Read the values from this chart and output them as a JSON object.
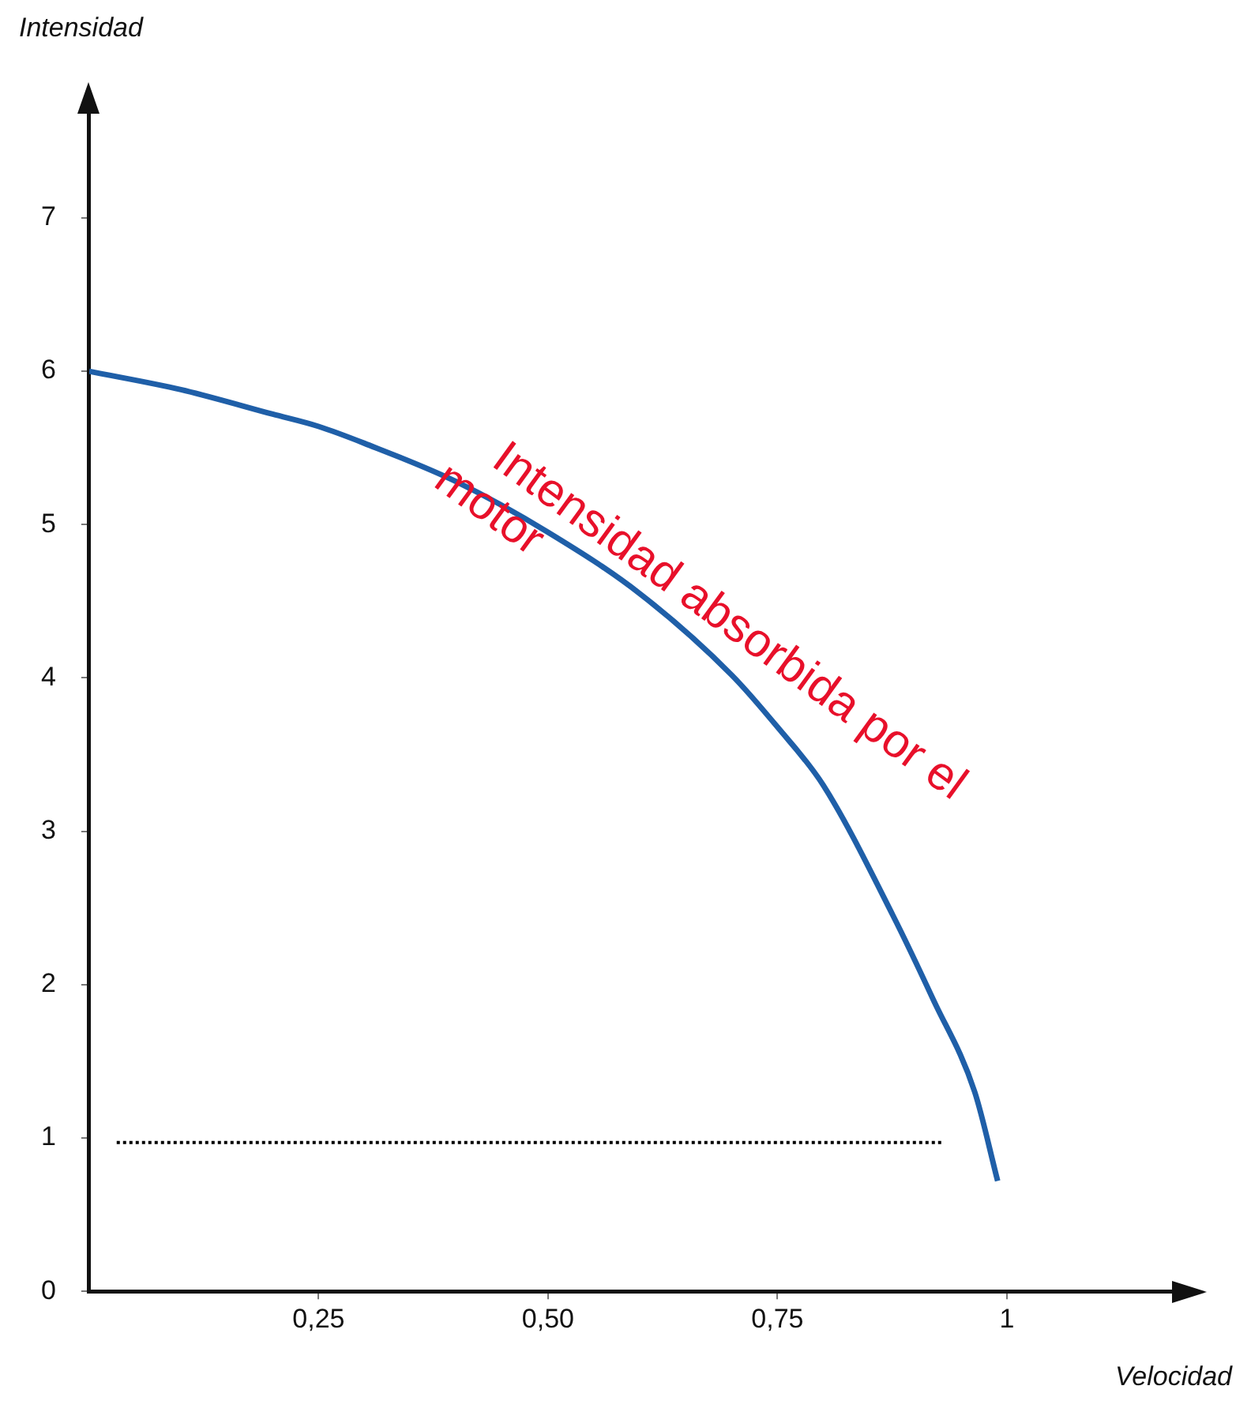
{
  "chart_data": {
    "type": "line",
    "xlabel": "Velocidad",
    "ylabel": "Intensidad",
    "xlim": [
      0,
      1.18
    ],
    "ylim": [
      0,
      7.7
    ],
    "xticks": [
      {
        "value": 0.25,
        "label": "0,25"
      },
      {
        "value": 0.5,
        "label": "0,50"
      },
      {
        "value": 0.75,
        "label": "0,75"
      },
      {
        "value": 1,
        "label": "1"
      }
    ],
    "yticks": [
      0,
      1,
      2,
      3,
      4,
      5,
      6,
      7
    ],
    "grid": false,
    "legend": false,
    "marker": "none",
    "series": [
      {
        "color": "#1f5fa8",
        "line_style": "solid",
        "x": [
          0,
          0.1,
          0.2,
          0.25,
          0.3,
          0.4,
          0.5,
          0.6,
          0.7,
          0.75,
          0.8,
          0.876,
          0.92,
          0.965,
          0.99
        ],
        "values": [
          6.0,
          5.88,
          5.72,
          5.64,
          5.53,
          5.28,
          4.95,
          4.55,
          4.02,
          3.68,
          3.3,
          2.45,
          1.9,
          1.3,
          0.72
        ]
      },
      {
        "color": "#000000",
        "line_style": "dotted",
        "x": [
          0.03,
          0.93
        ],
        "values": [
          0.97,
          0.97
        ]
      }
    ],
    "annotations": [
      "Intensidad absorbida por el motor"
    ]
  }
}
